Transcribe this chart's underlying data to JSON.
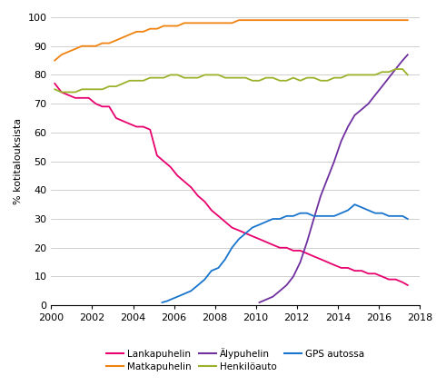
{
  "title": "",
  "ylabel": "% kotitalouksista",
  "ylim": [
    0,
    100
  ],
  "xlim": [
    2000,
    2018
  ],
  "xticks": [
    2000,
    2002,
    2004,
    2006,
    2008,
    2010,
    2012,
    2014,
    2016,
    2018
  ],
  "yticks": [
    0,
    10,
    20,
    30,
    40,
    50,
    60,
    70,
    80,
    90,
    100
  ],
  "background_color": "#ffffff",
  "grid_color": "#c8c8c8",
  "series": [
    {
      "name": "Lankapuhelin",
      "color": "#e8006e",
      "data": [
        [
          2000.17,
          77
        ],
        [
          2000.5,
          74
        ],
        [
          2000.83,
          73
        ],
        [
          2001.17,
          72
        ],
        [
          2001.5,
          72
        ],
        [
          2001.83,
          72
        ],
        [
          2002.17,
          70
        ],
        [
          2002.5,
          69
        ],
        [
          2002.83,
          69
        ],
        [
          2003.17,
          65
        ],
        [
          2003.5,
          64
        ],
        [
          2003.83,
          63
        ],
        [
          2004.17,
          62
        ],
        [
          2004.5,
          62
        ],
        [
          2004.83,
          61
        ],
        [
          2005.17,
          52
        ],
        [
          2005.5,
          50
        ],
        [
          2005.83,
          48
        ],
        [
          2006.17,
          45
        ],
        [
          2006.5,
          43
        ],
        [
          2006.83,
          41
        ],
        [
          2007.17,
          38
        ],
        [
          2007.5,
          36
        ],
        [
          2007.83,
          33
        ],
        [
          2008.17,
          31
        ],
        [
          2008.5,
          29
        ],
        [
          2008.83,
          27
        ],
        [
          2009.17,
          26
        ],
        [
          2009.5,
          25
        ],
        [
          2009.83,
          24
        ],
        [
          2010.17,
          23
        ],
        [
          2010.5,
          22
        ],
        [
          2010.83,
          21
        ],
        [
          2011.17,
          20
        ],
        [
          2011.5,
          20
        ],
        [
          2011.83,
          19
        ],
        [
          2012.17,
          19
        ],
        [
          2012.5,
          18
        ],
        [
          2012.83,
          17
        ],
        [
          2013.17,
          16
        ],
        [
          2013.5,
          15
        ],
        [
          2013.83,
          14
        ],
        [
          2014.17,
          13
        ],
        [
          2014.5,
          13
        ],
        [
          2014.83,
          12
        ],
        [
          2015.17,
          12
        ],
        [
          2015.5,
          11
        ],
        [
          2015.83,
          11
        ],
        [
          2016.17,
          10
        ],
        [
          2016.5,
          9
        ],
        [
          2016.83,
          9
        ],
        [
          2017.17,
          8
        ],
        [
          2017.42,
          7
        ]
      ]
    },
    {
      "name": "Matkapuhelin",
      "color": "#f0820f",
      "data": [
        [
          2000.17,
          85
        ],
        [
          2000.5,
          87
        ],
        [
          2000.83,
          88
        ],
        [
          2001.17,
          89
        ],
        [
          2001.5,
          90
        ],
        [
          2001.83,
          90
        ],
        [
          2002.17,
          90
        ],
        [
          2002.5,
          91
        ],
        [
          2002.83,
          91
        ],
        [
          2003.17,
          92
        ],
        [
          2003.5,
          93
        ],
        [
          2003.83,
          94
        ],
        [
          2004.17,
          95
        ],
        [
          2004.5,
          95
        ],
        [
          2004.83,
          96
        ],
        [
          2005.17,
          96
        ],
        [
          2005.5,
          97
        ],
        [
          2005.83,
          97
        ],
        [
          2006.17,
          97
        ],
        [
          2006.5,
          98
        ],
        [
          2006.83,
          98
        ],
        [
          2007.17,
          98
        ],
        [
          2007.5,
          98
        ],
        [
          2007.83,
          98
        ],
        [
          2008.17,
          98
        ],
        [
          2008.5,
          98
        ],
        [
          2008.83,
          98
        ],
        [
          2009.17,
          99
        ],
        [
          2009.5,
          99
        ],
        [
          2009.83,
          99
        ],
        [
          2010.17,
          99
        ],
        [
          2010.5,
          99
        ],
        [
          2010.83,
          99
        ],
        [
          2011.17,
          99
        ],
        [
          2011.5,
          99
        ],
        [
          2011.83,
          99
        ],
        [
          2012.17,
          99
        ],
        [
          2012.5,
          99
        ],
        [
          2012.83,
          99
        ],
        [
          2013.17,
          99
        ],
        [
          2013.5,
          99
        ],
        [
          2013.83,
          99
        ],
        [
          2014.17,
          99
        ],
        [
          2014.5,
          99
        ],
        [
          2014.83,
          99
        ],
        [
          2015.17,
          99
        ],
        [
          2015.5,
          99
        ],
        [
          2015.83,
          99
        ],
        [
          2016.17,
          99
        ],
        [
          2016.5,
          99
        ],
        [
          2016.83,
          99
        ],
        [
          2017.17,
          99
        ],
        [
          2017.42,
          99
        ]
      ]
    },
    {
      "name": "Älypuhelin",
      "color": "#7030a0",
      "data": [
        [
          2010.17,
          1
        ],
        [
          2010.5,
          2
        ],
        [
          2010.83,
          3
        ],
        [
          2011.17,
          5
        ],
        [
          2011.5,
          7
        ],
        [
          2011.83,
          10
        ],
        [
          2012.17,
          15
        ],
        [
          2012.5,
          22
        ],
        [
          2012.83,
          30
        ],
        [
          2013.17,
          38
        ],
        [
          2013.5,
          44
        ],
        [
          2013.83,
          50
        ],
        [
          2014.17,
          57
        ],
        [
          2014.5,
          62
        ],
        [
          2014.83,
          66
        ],
        [
          2015.17,
          68
        ],
        [
          2015.5,
          70
        ],
        [
          2015.83,
          73
        ],
        [
          2016.17,
          76
        ],
        [
          2016.5,
          79
        ],
        [
          2016.83,
          82
        ],
        [
          2017.17,
          85
        ],
        [
          2017.42,
          87
        ]
      ]
    },
    {
      "name": "Henkilöauto",
      "color": "#99b22a",
      "data": [
        [
          2000.17,
          75
        ],
        [
          2000.5,
          74
        ],
        [
          2000.83,
          74
        ],
        [
          2001.17,
          74
        ],
        [
          2001.5,
          75
        ],
        [
          2001.83,
          75
        ],
        [
          2002.17,
          75
        ],
        [
          2002.5,
          75
        ],
        [
          2002.83,
          76
        ],
        [
          2003.17,
          76
        ],
        [
          2003.5,
          77
        ],
        [
          2003.83,
          78
        ],
        [
          2004.17,
          78
        ],
        [
          2004.5,
          78
        ],
        [
          2004.83,
          79
        ],
        [
          2005.17,
          79
        ],
        [
          2005.5,
          79
        ],
        [
          2005.83,
          80
        ],
        [
          2006.17,
          80
        ],
        [
          2006.5,
          79
        ],
        [
          2006.83,
          79
        ],
        [
          2007.17,
          79
        ],
        [
          2007.5,
          80
        ],
        [
          2007.83,
          80
        ],
        [
          2008.17,
          80
        ],
        [
          2008.5,
          79
        ],
        [
          2008.83,
          79
        ],
        [
          2009.17,
          79
        ],
        [
          2009.5,
          79
        ],
        [
          2009.83,
          78
        ],
        [
          2010.17,
          78
        ],
        [
          2010.5,
          79
        ],
        [
          2010.83,
          79
        ],
        [
          2011.17,
          78
        ],
        [
          2011.5,
          78
        ],
        [
          2011.83,
          79
        ],
        [
          2012.17,
          78
        ],
        [
          2012.5,
          79
        ],
        [
          2012.83,
          79
        ],
        [
          2013.17,
          78
        ],
        [
          2013.5,
          78
        ],
        [
          2013.83,
          79
        ],
        [
          2014.17,
          79
        ],
        [
          2014.5,
          80
        ],
        [
          2014.83,
          80
        ],
        [
          2015.17,
          80
        ],
        [
          2015.5,
          80
        ],
        [
          2015.83,
          80
        ],
        [
          2016.17,
          81
        ],
        [
          2016.5,
          81
        ],
        [
          2016.83,
          82
        ],
        [
          2017.17,
          82
        ],
        [
          2017.42,
          80
        ]
      ]
    },
    {
      "name": "GPS autossa",
      "color": "#1874cd",
      "data": [
        [
          2005.42,
          1
        ],
        [
          2005.67,
          1.5
        ],
        [
          2005.83,
          2
        ],
        [
          2006.17,
          3
        ],
        [
          2006.5,
          4
        ],
        [
          2006.83,
          5
        ],
        [
          2007.17,
          7
        ],
        [
          2007.5,
          9
        ],
        [
          2007.83,
          12
        ],
        [
          2008.17,
          13
        ],
        [
          2008.5,
          16
        ],
        [
          2008.83,
          20
        ],
        [
          2009.17,
          23
        ],
        [
          2009.5,
          25
        ],
        [
          2009.83,
          27
        ],
        [
          2010.17,
          28
        ],
        [
          2010.5,
          29
        ],
        [
          2010.83,
          30
        ],
        [
          2011.17,
          30
        ],
        [
          2011.5,
          31
        ],
        [
          2011.83,
          31
        ],
        [
          2012.17,
          32
        ],
        [
          2012.5,
          32
        ],
        [
          2012.83,
          31
        ],
        [
          2013.17,
          31
        ],
        [
          2013.5,
          31
        ],
        [
          2013.83,
          31
        ],
        [
          2014.17,
          32
        ],
        [
          2014.5,
          33
        ],
        [
          2014.83,
          35
        ],
        [
          2015.17,
          34
        ],
        [
          2015.5,
          33
        ],
        [
          2015.83,
          32
        ],
        [
          2016.17,
          32
        ],
        [
          2016.5,
          31
        ],
        [
          2016.83,
          31
        ],
        [
          2017.17,
          31
        ],
        [
          2017.42,
          30
        ]
      ]
    }
  ],
  "legend_row1": [
    {
      "label": "Lankapuhelin",
      "color": "#e8006e"
    },
    {
      "label": "Matkapuhelin",
      "color": "#f0820f"
    },
    {
      "label": "Älypuhelin",
      "color": "#7030a0"
    }
  ],
  "legend_row2": [
    {
      "label": "Henkilöauto",
      "color": "#99b22a"
    },
    {
      "label": "GPS autossa",
      "color": "#1874cd"
    }
  ]
}
